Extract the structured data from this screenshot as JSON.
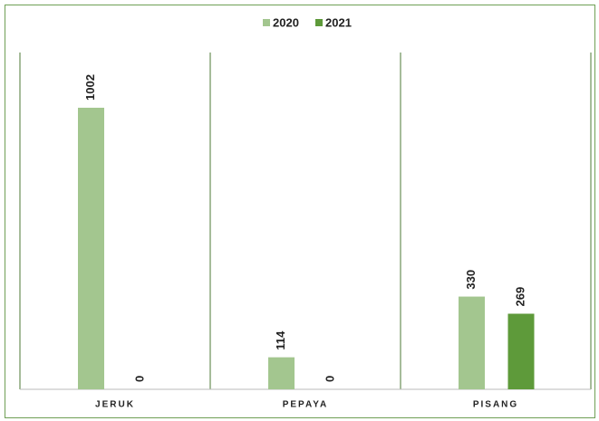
{
  "chart_data": {
    "type": "bar",
    "categories": [
      "JERUK",
      "PEPAYA",
      "PISANG"
    ],
    "series": [
      {
        "name": "2020",
        "color": "#a3c68f",
        "values": [
          1002,
          114,
          330
        ]
      },
      {
        "name": "2021",
        "color": "#5e9a3a",
        "values": [
          0,
          0,
          269
        ]
      }
    ],
    "legend": "top"
  }
}
